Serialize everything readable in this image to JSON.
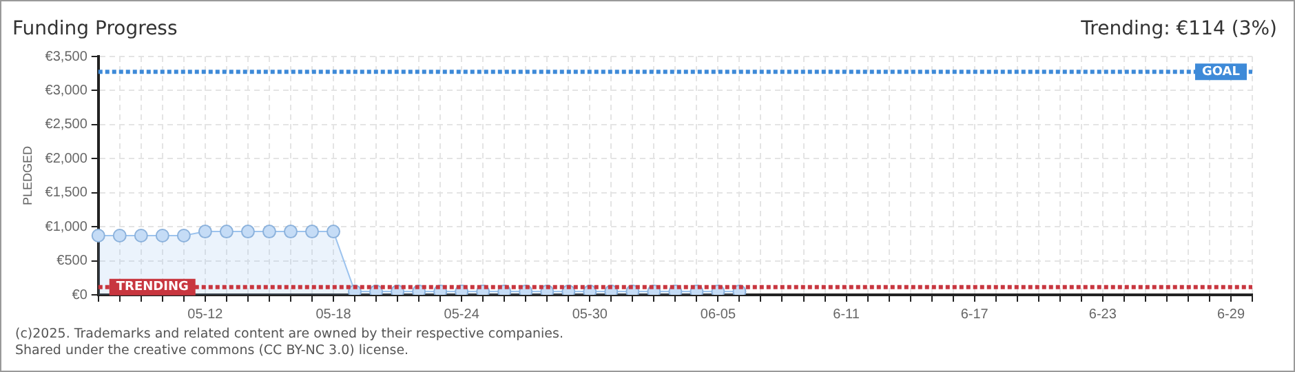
{
  "chart_data": {
    "type": "area",
    "title": "Funding Progress",
    "subtitle": "Trending: €114 (3%)",
    "ylabel": "PLEDGED",
    "categories": [
      null,
      null,
      null,
      null,
      null,
      "05-12",
      null,
      null,
      null,
      null,
      null,
      "05-18",
      null,
      null,
      null,
      null,
      null,
      "05-24",
      null,
      null,
      null,
      null,
      null,
      "05-30",
      null,
      null,
      null,
      null,
      null,
      "06-05",
      null,
      null,
      null,
      null,
      null,
      "6-11",
      null,
      null,
      null,
      null,
      null,
      "6-17",
      null,
      null,
      null,
      null,
      null,
      "6-23",
      null,
      null,
      null,
      null,
      null,
      "6-29",
      null
    ],
    "series": [
      {
        "color": "#9cc3ee",
        "values": [
          870,
          870,
          870,
          870,
          870,
          930,
          930,
          930,
          930,
          930,
          930,
          930,
          50,
          50,
          50,
          50,
          50,
          50,
          50,
          50,
          50,
          50,
          50,
          50,
          50,
          50,
          50,
          50,
          50,
          50,
          50,
          null,
          null,
          null,
          null,
          null,
          null,
          null,
          null,
          null,
          null,
          null,
          null,
          null,
          null,
          null,
          null,
          null,
          null,
          null,
          null,
          null,
          null,
          null,
          null
        ]
      }
    ],
    "ylim": [
      0,
      3500
    ],
    "yticks": [
      {
        "value": 0,
        "label": "€0"
      },
      {
        "value": 500,
        "label": "€500"
      },
      {
        "value": 1000,
        "label": "€1,000"
      },
      {
        "value": 1500,
        "label": "€1,500"
      },
      {
        "value": 2000,
        "label": "€2,000"
      },
      {
        "value": 2500,
        "label": "€2,500"
      },
      {
        "value": 3000,
        "label": "€3,000"
      },
      {
        "value": 3500,
        "label": "€3,500"
      }
    ],
    "ref_lines": [
      {
        "axis": "y",
        "value": 3275,
        "label": "GOAL",
        "color": "#3e8ad8",
        "line_style": "dotted"
      },
      {
        "axis": "y",
        "value": 114,
        "label": "TRENDING",
        "color": "#c8363f",
        "line_style": "dotted"
      }
    ],
    "annotations": [
      "(c)2025. Trademarks and related content are owned by their respective companies.",
      "Shared under the creative commons (CC BY-NC 3.0) license."
    ],
    "grid": true,
    "marker": "circle",
    "legend": false
  }
}
